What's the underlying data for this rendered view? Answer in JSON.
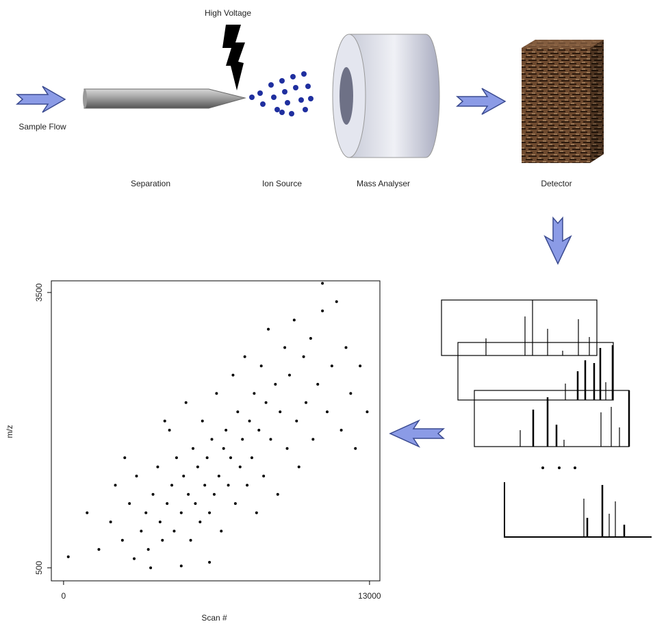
{
  "diagram": {
    "high_voltage": "High Voltage",
    "sample_flow": "Sample Flow",
    "separation": "Separation",
    "ion_source": "Ion Source",
    "mass_analyser": "Mass Analyser",
    "detector": "Detector"
  },
  "chart_data": {
    "type": "scatter",
    "x_label": "Scan #",
    "y_label": "m/z",
    "xlim": [
      -520,
      13440
    ],
    "ylim": [
      358,
      3627
    ],
    "xticks": [
      0,
      13000
    ],
    "yticks": [
      500,
      3500
    ],
    "color": "#000000",
    "x": [
      200,
      1000,
      1500,
      2000,
      2200,
      2500,
      2800,
      3000,
      3100,
      3300,
      3500,
      3600,
      3800,
      4000,
      4100,
      4200,
      4400,
      4500,
      4600,
      4700,
      4800,
      5000,
      5100,
      5200,
      5300,
      5400,
      5500,
      5600,
      5700,
      5800,
      5900,
      6000,
      6100,
      6200,
      6300,
      6400,
      6500,
      6600,
      6700,
      6800,
      6900,
      7000,
      7100,
      7200,
      7300,
      7400,
      7500,
      7600,
      7700,
      7800,
      7900,
      8000,
      8100,
      8200,
      8300,
      8400,
      8500,
      8600,
      8700,
      8800,
      9000,
      9100,
      9200,
      9400,
      9500,
      9600,
      9800,
      9900,
      10000,
      10200,
      10300,
      10500,
      10600,
      10800,
      11000,
      11200,
      11400,
      11600,
      11800,
      12000,
      12200,
      12400,
      12600,
      12900,
      11000,
      3700,
      5000,
      6200,
      2600,
      4300
    ],
    "values": [
      620,
      1100,
      700,
      1000,
      1400,
      800,
      1200,
      600,
      1500,
      900,
      1100,
      700,
      1300,
      1600,
      1000,
      800,
      1200,
      2000,
      1400,
      900,
      1700,
      1100,
      1500,
      2300,
      1300,
      800,
      1800,
      1200,
      1600,
      1000,
      2100,
      1400,
      1700,
      1100,
      1900,
      1300,
      2400,
      1500,
      900,
      1800,
      2000,
      1400,
      1700,
      2600,
      1200,
      2200,
      1600,
      1900,
      2800,
      1400,
      2100,
      1700,
      2400,
      1100,
      2000,
      2700,
      1500,
      2300,
      3100,
      1900,
      2500,
      1300,
      2200,
      2900,
      1800,
      2600,
      3200,
      2100,
      1600,
      2800,
      2300,
      3000,
      1900,
      2500,
      3300,
      2200,
      2700,
      3400,
      2000,
      2900,
      2400,
      1800,
      2700,
      2200,
      3600,
      500,
      520,
      560,
      1700,
      2100
    ]
  }
}
